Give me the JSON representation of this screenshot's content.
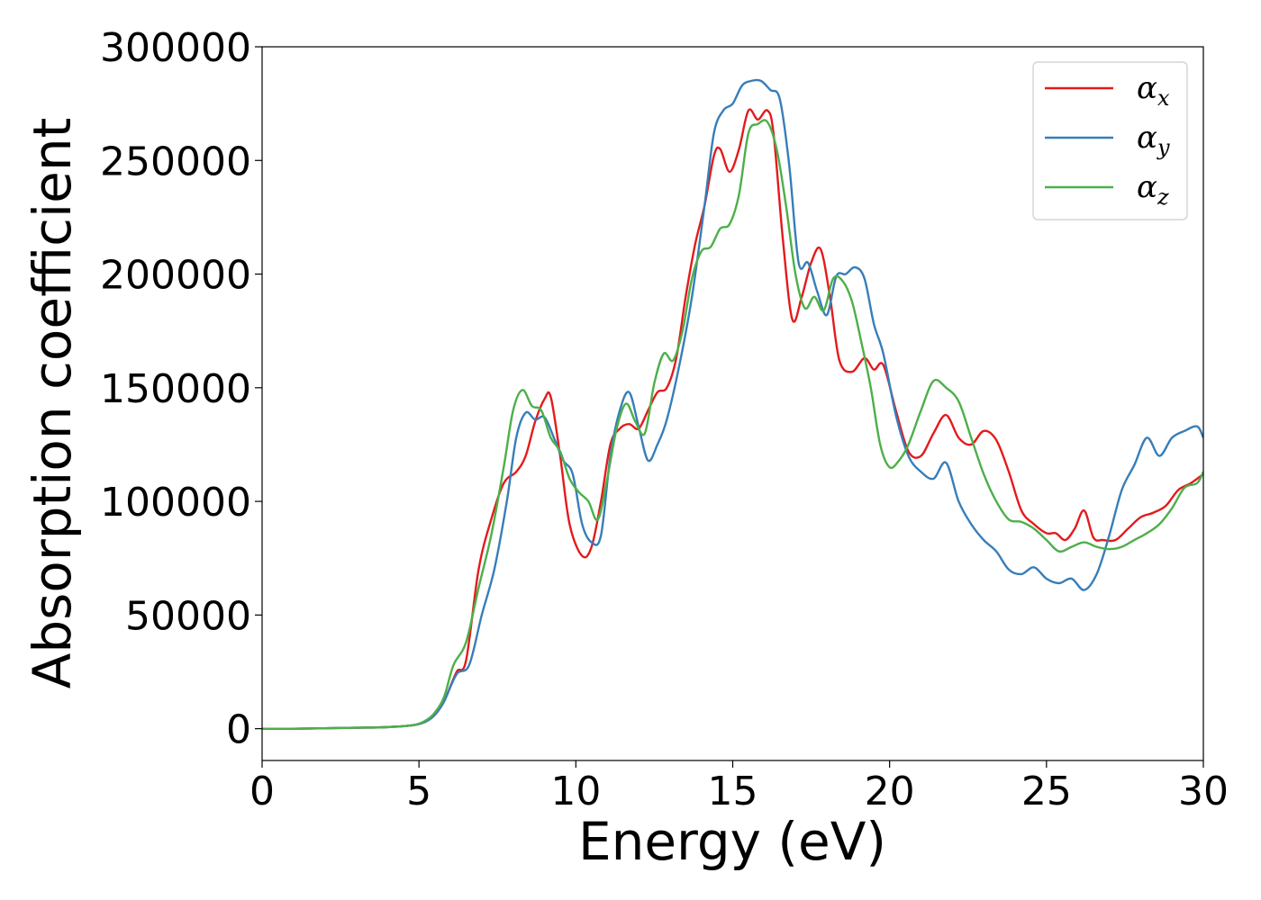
{
  "chart_data": {
    "type": "line",
    "title": "",
    "xlabel": "Energy (eV)",
    "ylabel": "Absorption coefficient",
    "xlim": [
      0,
      30
    ],
    "ylim": [
      -14000,
      300000
    ],
    "xticks": [
      0,
      5,
      10,
      15,
      20,
      25,
      30
    ],
    "yticks": [
      0,
      50000,
      100000,
      150000,
      200000,
      250000,
      300000
    ],
    "grid": false,
    "legend_position": "top-right",
    "series": [
      {
        "name": "αx",
        "symbol": "α",
        "subscript": "x",
        "color": "#e41a1c",
        "x": [
          0,
          1,
          2,
          3,
          4,
          4.8,
          5.2,
          5.5,
          5.8,
          6.2,
          6.5,
          6.9,
          7.3,
          7.7,
          8.1,
          8.4,
          8.7,
          9.0,
          9.2,
          9.5,
          9.8,
          10.2,
          10.5,
          10.8,
          11.1,
          11.4,
          11.7,
          12.0,
          12.3,
          12.6,
          12.9,
          13.2,
          13.5,
          13.8,
          14.1,
          14.4,
          14.6,
          14.9,
          15.2,
          15.5,
          15.8,
          16.1,
          16.3,
          16.6,
          16.9,
          17.2,
          17.5,
          17.8,
          18.1,
          18.4,
          18.8,
          19.2,
          19.5,
          19.8,
          20.2,
          20.6,
          21.0,
          21.4,
          21.8,
          22.2,
          22.6,
          23.0,
          23.4,
          23.8,
          24.2,
          24.6,
          25.0,
          25.3,
          25.6,
          25.9,
          26.2,
          26.5,
          26.8,
          27.2,
          27.6,
          28.0,
          28.4,
          28.8,
          29.2,
          29.6,
          30.0
        ],
        "y": [
          0,
          0,
          200,
          400,
          700,
          1500,
          3000,
          6000,
          12000,
          25000,
          30000,
          70000,
          92000,
          108000,
          113000,
          120000,
          135000,
          145000,
          146000,
          120000,
          90000,
          76000,
          80000,
          100000,
          125000,
          132000,
          134000,
          132000,
          140000,
          148000,
          150000,
          163000,
          190000,
          213000,
          230000,
          252000,
          255000,
          245000,
          255000,
          272000,
          268000,
          272000,
          262000,
          215000,
          180000,
          190000,
          205000,
          211000,
          190000,
          162000,
          157000,
          163000,
          158000,
          160000,
          140000,
          122000,
          120000,
          130000,
          138000,
          128000,
          125000,
          131000,
          127000,
          113000,
          96000,
          90000,
          86000,
          86000,
          83000,
          88000,
          96000,
          84000,
          83000,
          83000,
          88000,
          93000,
          95000,
          98000,
          105000,
          108000,
          112000
        ]
      },
      {
        "name": "αy",
        "symbol": "α",
        "subscript": "y",
        "color": "#377eb8",
        "x": [
          0,
          1,
          2,
          3,
          4,
          4.8,
          5.2,
          5.5,
          5.8,
          6.2,
          6.6,
          7.0,
          7.4,
          7.8,
          8.1,
          8.4,
          8.7,
          9.0,
          9.3,
          9.6,
          9.9,
          10.2,
          10.5,
          10.8,
          11.1,
          11.4,
          11.7,
          12.0,
          12.3,
          12.6,
          12.9,
          13.3,
          13.7,
          14.1,
          14.4,
          14.7,
          15.0,
          15.3,
          15.6,
          15.9,
          16.2,
          16.5,
          16.8,
          17.1,
          17.4,
          17.7,
          18.0,
          18.3,
          18.6,
          18.9,
          19.2,
          19.5,
          19.8,
          20.2,
          20.6,
          21.0,
          21.4,
          21.8,
          22.2,
          22.6,
          23.0,
          23.4,
          23.8,
          24.2,
          24.6,
          25.0,
          25.4,
          25.8,
          26.2,
          26.6,
          27.0,
          27.4,
          27.8,
          28.2,
          28.6,
          29.0,
          29.4,
          29.8,
          30.0
        ],
        "y": [
          0,
          0,
          200,
          400,
          700,
          1500,
          3000,
          6000,
          12000,
          24000,
          28000,
          50000,
          70000,
          100000,
          128000,
          139000,
          136000,
          137000,
          128000,
          118000,
          112000,
          90000,
          82000,
          85000,
          120000,
          140000,
          148000,
          133000,
          118000,
          125000,
          136000,
          160000,
          190000,
          230000,
          262000,
          272000,
          275000,
          283000,
          285000,
          285000,
          281000,
          277000,
          248000,
          205000,
          205000,
          192000,
          182000,
          199000,
          200000,
          203000,
          198000,
          178000,
          165000,
          138000,
          120000,
          113000,
          110000,
          117000,
          100000,
          90000,
          83000,
          78000,
          70000,
          68000,
          71000,
          66000,
          64000,
          66000,
          61000,
          68000,
          85000,
          105000,
          116000,
          128000,
          120000,
          128000,
          131000,
          133000,
          128000
        ]
      },
      {
        "name": "αz",
        "symbol": "α",
        "subscript": "z",
        "color": "#4daf4a",
        "x": [
          0,
          1,
          2,
          3,
          4,
          4.8,
          5.2,
          5.5,
          5.8,
          6.1,
          6.5,
          6.9,
          7.3,
          7.7,
          8.0,
          8.3,
          8.6,
          8.9,
          9.2,
          9.5,
          9.8,
          10.1,
          10.4,
          10.7,
          11.0,
          11.3,
          11.6,
          11.9,
          12.2,
          12.5,
          12.8,
          13.1,
          13.4,
          13.7,
          14.0,
          14.3,
          14.6,
          14.9,
          15.2,
          15.5,
          15.8,
          16.1,
          16.4,
          16.7,
          17.0,
          17.3,
          17.6,
          17.9,
          18.2,
          18.5,
          18.8,
          19.1,
          19.4,
          19.7,
          20.0,
          20.3,
          20.6,
          21.0,
          21.4,
          21.8,
          22.2,
          22.6,
          23.0,
          23.4,
          23.8,
          24.2,
          24.6,
          25.0,
          25.4,
          25.8,
          26.2,
          26.6,
          27.0,
          27.4,
          27.8,
          28.2,
          28.6,
          29.0,
          29.4,
          29.8,
          30.0
        ],
        "y": [
          0,
          0,
          200,
          400,
          700,
          1500,
          3500,
          7000,
          14000,
          28000,
          38000,
          62000,
          85000,
          115000,
          140000,
          149000,
          142000,
          140000,
          128000,
          122000,
          110000,
          104000,
          100000,
          92000,
          110000,
          132000,
          143000,
          135000,
          130000,
          152000,
          165000,
          162000,
          175000,
          198000,
          210000,
          212000,
          220000,
          222000,
          235000,
          262000,
          266000,
          267000,
          255000,
          230000,
          200000,
          185000,
          190000,
          184000,
          198000,
          197000,
          188000,
          170000,
          150000,
          125000,
          115000,
          118000,
          125000,
          140000,
          153000,
          150000,
          144000,
          128000,
          112000,
          100000,
          92000,
          91000,
          88000,
          83000,
          78000,
          80000,
          82000,
          80000,
          79000,
          80000,
          83000,
          86000,
          90000,
          97000,
          106000,
          108000,
          113000
        ]
      }
    ]
  }
}
